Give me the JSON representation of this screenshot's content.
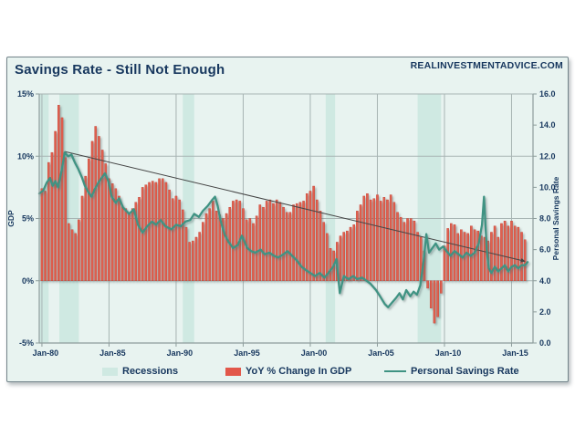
{
  "page": {
    "title": "Savings Rate - Still Not Enough",
    "site": "REALINVESTMENTADVICE.COM"
  },
  "colors": {
    "panel_bg": "#e8f3f0",
    "recession_band": "#cfe9e2",
    "gridline": "#a7b4b3",
    "axis_line": "#8d9c9b",
    "bar_fill": "#e0604f",
    "bar_stroke": "#c23f31",
    "line_color": "#3f9383",
    "trend_color": "#444444",
    "text_navy": "#17375e"
  },
  "chart_data": {
    "type": "mixed",
    "title": "Savings Rate - Still Not Enough",
    "grid": true,
    "legend_position": "bottom",
    "x_axis": {
      "domain": [
        1979.8,
        2016.6
      ],
      "tick_labels": [
        "Jan-80",
        "Jan-85",
        "Jan-90",
        "Jan-95",
        "Jan-00",
        "Jan-05",
        "Jan-10",
        "Jan-15"
      ],
      "tick_years": [
        1980,
        1985,
        1990,
        1995,
        2000,
        2005,
        2010,
        2015
      ]
    },
    "left_axis": {
      "label": "GDP",
      "min": -5,
      "max": 15,
      "tick_labels": [
        "15%",
        "10%",
        "5%",
        "0%",
        "-5%"
      ],
      "tick_values": [
        15,
        10,
        5,
        0,
        -5
      ]
    },
    "right_axis": {
      "label": "Personal Savings Rate",
      "min": 0,
      "max": 16,
      "tick_labels": [
        "16.0",
        "14.0",
        "12.0",
        "10.0",
        "8.0",
        "6.0",
        "4.0",
        "2.0",
        "0.0"
      ],
      "tick_values": [
        16,
        14,
        12,
        10,
        8,
        6,
        4,
        2,
        0
      ]
    },
    "legend": [
      {
        "label": "Recessions",
        "type": "area",
        "color": "#cfe9e2"
      },
      {
        "label": "YoY % Change In GDP",
        "type": "bar",
        "color": "#e2574a"
      },
      {
        "label": "Personal Savings Rate",
        "type": "line",
        "color": "#3f9383"
      }
    ],
    "recessions": [
      [
        1979.85,
        1980.5
      ],
      [
        1981.3,
        1982.75
      ],
      [
        1990.5,
        1991.35
      ],
      [
        2001.15,
        2001.85
      ],
      [
        2008.0,
        2009.75
      ]
    ],
    "gdp_bars": {
      "name": "YoY % Change In GDP",
      "axis": "left",
      "start_year": 1980.0,
      "interval": 0.25,
      "values": [
        7.4,
        7.2,
        9.5,
        10.3,
        12.0,
        14.1,
        13.1,
        9.9,
        4.6,
        4.1,
        3.8,
        4.9,
        6.8,
        8.4,
        9.8,
        11.2,
        12.4,
        11.6,
        10.5,
        9.4,
        8.2,
        7.8,
        7.4,
        6.8,
        6.0,
        5.8,
        5.4,
        5.8,
        6.3,
        6.7,
        7.5,
        7.7,
        7.9,
        8.0,
        7.9,
        8.2,
        8.2,
        7.9,
        7.3,
        6.6,
        6.8,
        6.5,
        5.7,
        4.3,
        3.1,
        3.2,
        3.5,
        3.9,
        4.7,
        5.4,
        5.8,
        6.4,
        5.6,
        5.3,
        5.0,
        5.4,
        5.9,
        6.4,
        6.5,
        6.4,
        5.8,
        4.9,
        5.0,
        4.6,
        5.2,
        6.1,
        5.9,
        6.4,
        6.5,
        6.2,
        6.5,
        6.3,
        5.9,
        5.5,
        5.5,
        6.1,
        6.2,
        6.3,
        6.4,
        7.0,
        7.2,
        7.6,
        6.5,
        5.6,
        4.7,
        3.8,
        2.6,
        2.4,
        3.1,
        3.6,
        3.9,
        4.0,
        4.3,
        4.5,
        5.6,
        6.1,
        6.8,
        7.0,
        6.5,
        6.6,
        6.9,
        6.4,
        6.7,
        6.5,
        6.9,
        6.3,
        5.5,
        5.1,
        4.7,
        5.0,
        5.0,
        4.8,
        3.9,
        3.5,
        2.4,
        -0.6,
        -2.2,
        -3.4,
        -2.9,
        -1.0,
        2.8,
        4.2,
        4.6,
        4.5,
        3.8,
        4.1,
        3.9,
        3.8,
        4.4,
        4.1,
        4.0,
        3.6,
        3.5,
        3.2,
        3.9,
        4.4,
        3.5,
        4.6,
        4.8,
        4.4,
        4.8,
        4.4,
        4.3,
        3.9,
        3.3
      ]
    },
    "savings_line": {
      "name": "Personal Savings Rate",
      "axis": "right",
      "points": [
        [
          1979.8,
          9.6
        ],
        [
          1980.1,
          9.8
        ],
        [
          1980.35,
          10.3
        ],
        [
          1980.6,
          10.6
        ],
        [
          1980.8,
          10.1
        ],
        [
          1981.0,
          10.4
        ],
        [
          1981.2,
          10.0
        ],
        [
          1981.45,
          11.0
        ],
        [
          1981.7,
          12.25
        ],
        [
          1981.95,
          12.0
        ],
        [
          1982.2,
          12.1
        ],
        [
          1982.45,
          11.6
        ],
        [
          1982.7,
          11.2
        ],
        [
          1983.0,
          10.6
        ],
        [
          1983.2,
          10.1
        ],
        [
          1983.45,
          9.7
        ],
        [
          1983.7,
          9.4
        ],
        [
          1983.95,
          9.9
        ],
        [
          1984.2,
          10.3
        ],
        [
          1984.45,
          10.6
        ],
        [
          1984.7,
          10.9
        ],
        [
          1984.95,
          10.4
        ],
        [
          1985.2,
          9.4
        ],
        [
          1985.5,
          9.0
        ],
        [
          1985.75,
          9.3
        ],
        [
          1986.05,
          8.7
        ],
        [
          1986.5,
          8.3
        ],
        [
          1986.85,
          8.6
        ],
        [
          1987.15,
          7.6
        ],
        [
          1987.5,
          7.1
        ],
        [
          1987.85,
          7.5
        ],
        [
          1988.2,
          7.8
        ],
        [
          1988.5,
          7.6
        ],
        [
          1988.85,
          7.9
        ],
        [
          1989.2,
          7.5
        ],
        [
          1989.65,
          7.3
        ],
        [
          1990.0,
          7.6
        ],
        [
          1990.35,
          7.5
        ],
        [
          1990.7,
          7.8
        ],
        [
          1991.05,
          7.9
        ],
        [
          1991.35,
          8.3
        ],
        [
          1991.7,
          8.1
        ],
        [
          1992.0,
          8.5
        ],
        [
          1992.35,
          8.8
        ],
        [
          1992.7,
          9.2
        ],
        [
          1992.9,
          9.4
        ],
        [
          1993.1,
          8.8
        ],
        [
          1993.3,
          7.9
        ],
        [
          1993.6,
          7.0
        ],
        [
          1993.9,
          6.5
        ],
        [
          1994.25,
          6.1
        ],
        [
          1994.6,
          6.3
        ],
        [
          1994.9,
          6.9
        ],
        [
          1995.3,
          6.1
        ],
        [
          1995.6,
          5.9
        ],
        [
          1995.9,
          5.8
        ],
        [
          1996.3,
          6.0
        ],
        [
          1996.6,
          5.7
        ],
        [
          1996.95,
          5.8
        ],
        [
          1997.3,
          5.6
        ],
        [
          1997.6,
          5.5
        ],
        [
          1998.0,
          5.7
        ],
        [
          1998.3,
          5.9
        ],
        [
          1998.65,
          5.6
        ],
        [
          1999.0,
          5.3
        ],
        [
          1999.35,
          4.9
        ],
        [
          1999.65,
          4.7
        ],
        [
          2000.0,
          4.5
        ],
        [
          2000.35,
          4.3
        ],
        [
          2000.7,
          4.5
        ],
        [
          2001.05,
          4.2
        ],
        [
          2001.35,
          4.5
        ],
        [
          2001.7,
          4.9
        ],
        [
          2001.95,
          5.4
        ],
        [
          2002.2,
          3.2
        ],
        [
          2002.5,
          4.3
        ],
        [
          2002.85,
          4.1
        ],
        [
          2003.2,
          4.3
        ],
        [
          2003.5,
          4.1
        ],
        [
          2003.85,
          4.2
        ],
        [
          2004.2,
          4.0
        ],
        [
          2004.5,
          3.8
        ],
        [
          2004.9,
          3.4
        ],
        [
          2005.2,
          3.0
        ],
        [
          2005.55,
          2.5
        ],
        [
          2005.8,
          2.3
        ],
        [
          2006.1,
          2.6
        ],
        [
          2006.4,
          2.9
        ],
        [
          2006.65,
          3.2
        ],
        [
          2006.9,
          2.8
        ],
        [
          2007.15,
          3.4
        ],
        [
          2007.45,
          3.0
        ],
        [
          2007.7,
          3.3
        ],
        [
          2007.95,
          3.1
        ],
        [
          2008.2,
          3.7
        ],
        [
          2008.45,
          5.3
        ],
        [
          2008.65,
          7.0
        ],
        [
          2008.85,
          5.8
        ],
        [
          2009.1,
          6.1
        ],
        [
          2009.35,
          6.4
        ],
        [
          2009.6,
          6.0
        ],
        [
          2009.9,
          6.2
        ],
        [
          2010.15,
          5.9
        ],
        [
          2010.45,
          5.6
        ],
        [
          2010.75,
          5.9
        ],
        [
          2011.05,
          5.7
        ],
        [
          2011.35,
          5.5
        ],
        [
          2011.65,
          5.8
        ],
        [
          2011.95,
          5.6
        ],
        [
          2012.25,
          5.8
        ],
        [
          2012.55,
          6.4
        ],
        [
          2012.8,
          7.6
        ],
        [
          2012.95,
          9.4
        ],
        [
          2013.15,
          6.0
        ],
        [
          2013.3,
          4.8
        ],
        [
          2013.5,
          4.5
        ],
        [
          2013.75,
          4.9
        ],
        [
          2014.0,
          4.6
        ],
        [
          2014.25,
          4.8
        ],
        [
          2014.5,
          5.0
        ],
        [
          2014.75,
          4.6
        ],
        [
          2015.0,
          4.9
        ],
        [
          2015.25,
          5.0
        ],
        [
          2015.5,
          4.8
        ],
        [
          2015.75,
          5.0
        ],
        [
          2016.0,
          5.0
        ],
        [
          2016.2,
          5.2
        ]
      ]
    },
    "trend_line": {
      "name": "trend",
      "axis": "right",
      "from": [
        1981.7,
        12.3
      ],
      "to": [
        2016.0,
        5.25
      ],
      "arrow": true
    }
  }
}
